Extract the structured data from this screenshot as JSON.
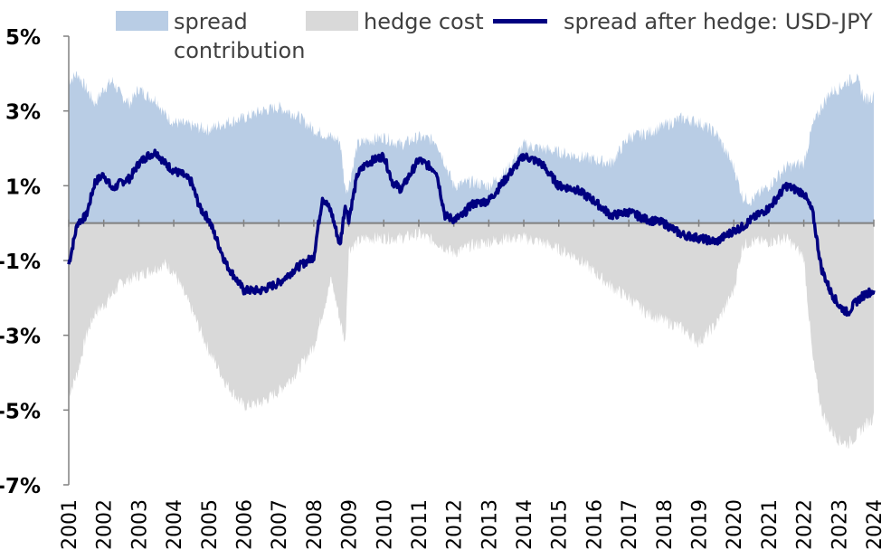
{
  "chart_data": {
    "type": "area",
    "xlabel": "",
    "ylabel": "",
    "ylim": [
      -7,
      5
    ],
    "y_ticks": [
      "5%",
      "3%",
      "1%",
      "-1%",
      "-3%",
      "-5%",
      "-7%"
    ],
    "y_tick_values": [
      5,
      3,
      1,
      -1,
      -3,
      -5,
      -7
    ],
    "negative_tick_color": "#ff0000",
    "x_ticks": [
      "2001",
      "2002",
      "2003",
      "2004",
      "2005",
      "2006",
      "2007",
      "2008",
      "2009",
      "2010",
      "2011",
      "2012",
      "2013",
      "2014",
      "2015",
      "2016",
      "2017",
      "2018",
      "2019",
      "2020",
      "2021",
      "2022",
      "2023",
      "2024"
    ],
    "x_tick_values": [
      2001,
      2002,
      2003,
      2004,
      2005,
      2006,
      2007,
      2008,
      2009,
      2010,
      2011,
      2012,
      2013,
      2014,
      2015,
      2016,
      2017,
      2018,
      2019,
      2020,
      2021,
      2022,
      2023,
      2024
    ],
    "xlim": [
      2001,
      2024
    ],
    "legend_position": "top",
    "series": [
      {
        "name": "spread contribution",
        "kind": "area",
        "color": "#b9cde5",
        "x": [
          2001.0,
          2001.25,
          2001.5,
          2001.75,
          2002.0,
          2002.25,
          2002.5,
          2002.75,
          2003.0,
          2003.25,
          2003.5,
          2003.75,
          2004.0,
          2004.5,
          2005.0,
          2005.5,
          2006.0,
          2006.5,
          2007.0,
          2007.5,
          2008.0,
          2008.5,
          2008.75,
          2008.9,
          2009.0,
          2009.25,
          2009.5,
          2010.0,
          2010.5,
          2011.0,
          2011.5,
          2012.0,
          2012.5,
          2013.0,
          2013.5,
          2014.0,
          2014.5,
          2015.0,
          2015.5,
          2016.0,
          2016.5,
          2017.0,
          2017.5,
          2018.0,
          2018.5,
          2019.0,
          2019.5,
          2020.0,
          2020.25,
          2020.5,
          2021.0,
          2021.5,
          2022.0,
          2022.25,
          2022.5,
          2022.75,
          2023.0,
          2023.25,
          2023.5,
          2023.75,
          2024.0
        ],
        "values": [
          3.8,
          4.0,
          3.6,
          3.2,
          3.6,
          3.8,
          3.4,
          3.2,
          3.6,
          3.4,
          3.3,
          2.9,
          2.7,
          2.6,
          2.5,
          2.7,
          2.8,
          3.0,
          3.1,
          2.9,
          2.5,
          2.3,
          2.2,
          0.9,
          1.0,
          2.1,
          2.2,
          2.3,
          2.1,
          2.3,
          2.2,
          1.0,
          1.1,
          1.0,
          1.4,
          2.1,
          2.0,
          1.9,
          1.8,
          1.7,
          1.6,
          2.3,
          2.4,
          2.6,
          2.8,
          2.7,
          2.4,
          1.5,
          0.7,
          0.6,
          1.0,
          1.5,
          1.6,
          2.6,
          3.1,
          3.5,
          3.6,
          3.8,
          3.9,
          3.3,
          3.4
        ]
      },
      {
        "name": "hedge cost",
        "kind": "area",
        "color": "#d9d9d9",
        "x": [
          2001.0,
          2001.25,
          2001.5,
          2001.75,
          2002.0,
          2002.25,
          2002.5,
          2002.75,
          2003.0,
          2003.25,
          2003.5,
          2003.75,
          2004.0,
          2004.5,
          2005.0,
          2005.5,
          2006.0,
          2006.5,
          2007.0,
          2007.5,
          2008.0,
          2008.5,
          2008.75,
          2008.9,
          2009.0,
          2009.25,
          2009.5,
          2010.0,
          2010.5,
          2011.0,
          2011.5,
          2012.0,
          2012.5,
          2013.0,
          2013.5,
          2014.0,
          2014.5,
          2015.0,
          2015.5,
          2016.0,
          2016.5,
          2017.0,
          2017.5,
          2018.0,
          2018.5,
          2019.0,
          2019.5,
          2020.0,
          2020.25,
          2020.5,
          2021.0,
          2021.5,
          2022.0,
          2022.25,
          2022.5,
          2022.75,
          2023.0,
          2023.25,
          2023.5,
          2023.75,
          2024.0
        ],
        "values": [
          -4.6,
          -4.0,
          -3.0,
          -2.4,
          -2.2,
          -1.9,
          -1.6,
          -1.5,
          -1.4,
          -1.3,
          -1.2,
          -1.1,
          -1.3,
          -2.3,
          -3.4,
          -4.3,
          -4.9,
          -4.8,
          -4.5,
          -4.0,
          -3.3,
          -1.5,
          -2.6,
          -3.2,
          -0.7,
          -0.5,
          -0.4,
          -0.4,
          -0.4,
          -0.3,
          -0.5,
          -0.8,
          -0.6,
          -0.5,
          -0.4,
          -0.4,
          -0.5,
          -0.7,
          -0.9,
          -1.3,
          -1.7,
          -2.0,
          -2.4,
          -2.6,
          -2.8,
          -3.2,
          -2.7,
          -1.8,
          -0.6,
          -0.5,
          -0.5,
          -0.4,
          -0.9,
          -3.6,
          -5.0,
          -5.5,
          -5.8,
          -5.9,
          -5.7,
          -5.4,
          -5.2
        ]
      },
      {
        "name": "spread after hedge: USD-JPY",
        "kind": "line",
        "color": "#000080",
        "x": [
          2001.0,
          2001.25,
          2001.5,
          2001.75,
          2002.0,
          2002.25,
          2002.5,
          2002.75,
          2003.0,
          2003.25,
          2003.5,
          2003.75,
          2004.0,
          2004.25,
          2004.5,
          2004.75,
          2005.0,
          2005.5,
          2006.0,
          2006.5,
          2007.0,
          2007.5,
          2008.0,
          2008.25,
          2008.5,
          2008.75,
          2008.9,
          2009.0,
          2009.25,
          2009.5,
          2010.0,
          2010.25,
          2010.5,
          2011.0,
          2011.5,
          2011.75,
          2012.0,
          2012.25,
          2012.5,
          2013.0,
          2013.5,
          2014.0,
          2014.5,
          2015.0,
          2015.5,
          2016.0,
          2016.5,
          2017.0,
          2017.5,
          2018.0,
          2018.5,
          2019.0,
          2019.5,
          2020.0,
          2020.25,
          2020.5,
          2021.0,
          2021.5,
          2022.0,
          2022.25,
          2022.5,
          2022.75,
          2023.0,
          2023.25,
          2023.5,
          2023.75,
          2024.0
        ],
        "values": [
          -1.1,
          0.0,
          0.2,
          1.1,
          1.3,
          0.9,
          1.1,
          1.2,
          1.6,
          1.8,
          1.9,
          1.6,
          1.4,
          1.3,
          1.1,
          0.4,
          0.1,
          -1.1,
          -1.8,
          -1.8,
          -1.6,
          -1.2,
          -0.9,
          0.7,
          0.3,
          -0.6,
          0.5,
          0.1,
          1.3,
          1.6,
          1.8,
          1.1,
          0.9,
          1.7,
          1.4,
          0.2,
          0.1,
          0.2,
          0.5,
          0.6,
          1.2,
          1.8,
          1.6,
          1.0,
          0.9,
          0.6,
          0.2,
          0.3,
          0.1,
          0.0,
          -0.3,
          -0.4,
          -0.5,
          -0.2,
          -0.1,
          0.1,
          0.4,
          1.0,
          0.8,
          0.3,
          -1.2,
          -1.8,
          -2.2,
          -2.4,
          -2.1,
          -1.9,
          -1.8
        ]
      }
    ]
  },
  "legend": {
    "items": [
      {
        "label_line1": "spread",
        "label_line2": "contribution",
        "color": "#b9cde5"
      },
      {
        "label": "hedge cost",
        "color": "#d9d9d9"
      },
      {
        "label": "spread after hedge: USD-JPY",
        "color": "#000080"
      }
    ]
  }
}
